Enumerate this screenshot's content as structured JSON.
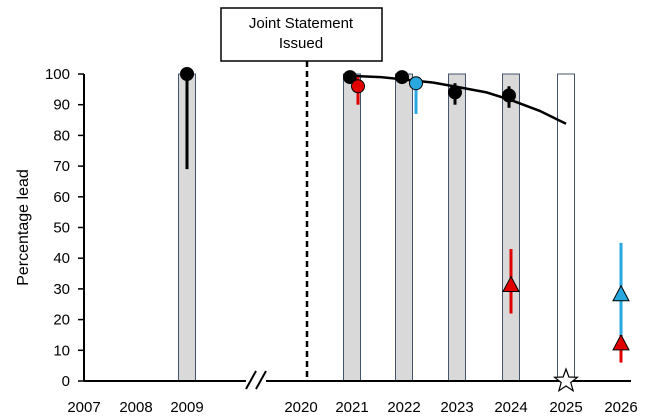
{
  "chart_data": {
    "type": "scatter",
    "title": "",
    "ylabel": "Percentage lead",
    "xlabel": "",
    "ylim": [
      0,
      100
    ],
    "yticks": [
      0,
      10,
      20,
      30,
      40,
      50,
      60,
      70,
      80,
      90,
      100
    ],
    "x_categories": [
      "2007",
      "2008",
      "2009",
      "2020",
      "2021",
      "2022",
      "2023",
      "2024",
      "2025",
      "2026"
    ],
    "axis_break_after": "2009",
    "annotation": {
      "lines": [
        "Joint Statement",
        "Issued"
      ],
      "x": 2020
    },
    "bars": [
      {
        "x": 2009,
        "value": 100,
        "style": "shaded"
      },
      {
        "x": 2021,
        "value": 100,
        "style": "shaded"
      },
      {
        "x": 2022,
        "value": 100,
        "style": "shaded"
      },
      {
        "x": 2023,
        "value": 100,
        "style": "shaded"
      },
      {
        "x": 2024,
        "value": 100,
        "style": "shaded"
      },
      {
        "x": 2025,
        "value": 100,
        "style": "outline"
      }
    ],
    "series": [
      {
        "color": "#000000",
        "marker": "circle",
        "points": [
          {
            "x": 2009,
            "y": 100,
            "err_low": 69,
            "err_high": 100
          },
          {
            "x": 2021,
            "y": 99,
            "err_low": 97,
            "err_high": 100
          },
          {
            "x": 2022,
            "y": 99,
            "err_low": 98,
            "err_high": 100
          },
          {
            "x": 2023,
            "y": 94,
            "err_low": 90,
            "err_high": 97
          },
          {
            "x": 2024,
            "y": 93,
            "err_low": 89,
            "err_high": 96
          }
        ]
      },
      {
        "color": "#e00000",
        "marker": "circle",
        "points": [
          {
            "x": 2021,
            "y": 96,
            "err_low": 90,
            "err_high": 99
          }
        ]
      },
      {
        "color": "#29a8e0",
        "marker": "circle",
        "points": [
          {
            "x": 2022,
            "y": 97,
            "err_low": 87,
            "err_high": 99
          }
        ]
      },
      {
        "color": "#e00000",
        "marker": "triangle",
        "points": [
          {
            "x": 2024,
            "y": 31,
            "err_low": 22,
            "err_high": 43
          },
          {
            "x": 2026,
            "y": 12,
            "err_low": 6,
            "err_high": 21
          }
        ]
      },
      {
        "color": "#29a8e0",
        "marker": "triangle",
        "points": [
          {
            "x": 2026,
            "y": 28,
            "err_low": 15,
            "err_high": 45
          }
        ]
      },
      {
        "color": "#ffffff",
        "marker": "star",
        "points": [
          {
            "x": 2025,
            "y": 0
          }
        ]
      }
    ],
    "trend_curve": [
      {
        "x": 2020.8,
        "y": 99.5
      },
      {
        "x": 2021.5,
        "y": 99
      },
      {
        "x": 2022,
        "y": 98.2
      },
      {
        "x": 2022.5,
        "y": 97.2
      },
      {
        "x": 2023,
        "y": 95.8
      },
      {
        "x": 2023.5,
        "y": 94
      },
      {
        "x": 2024,
        "y": 91.5
      },
      {
        "x": 2024.5,
        "y": 88
      },
      {
        "x": 2025,
        "y": 83.8
      }
    ]
  }
}
